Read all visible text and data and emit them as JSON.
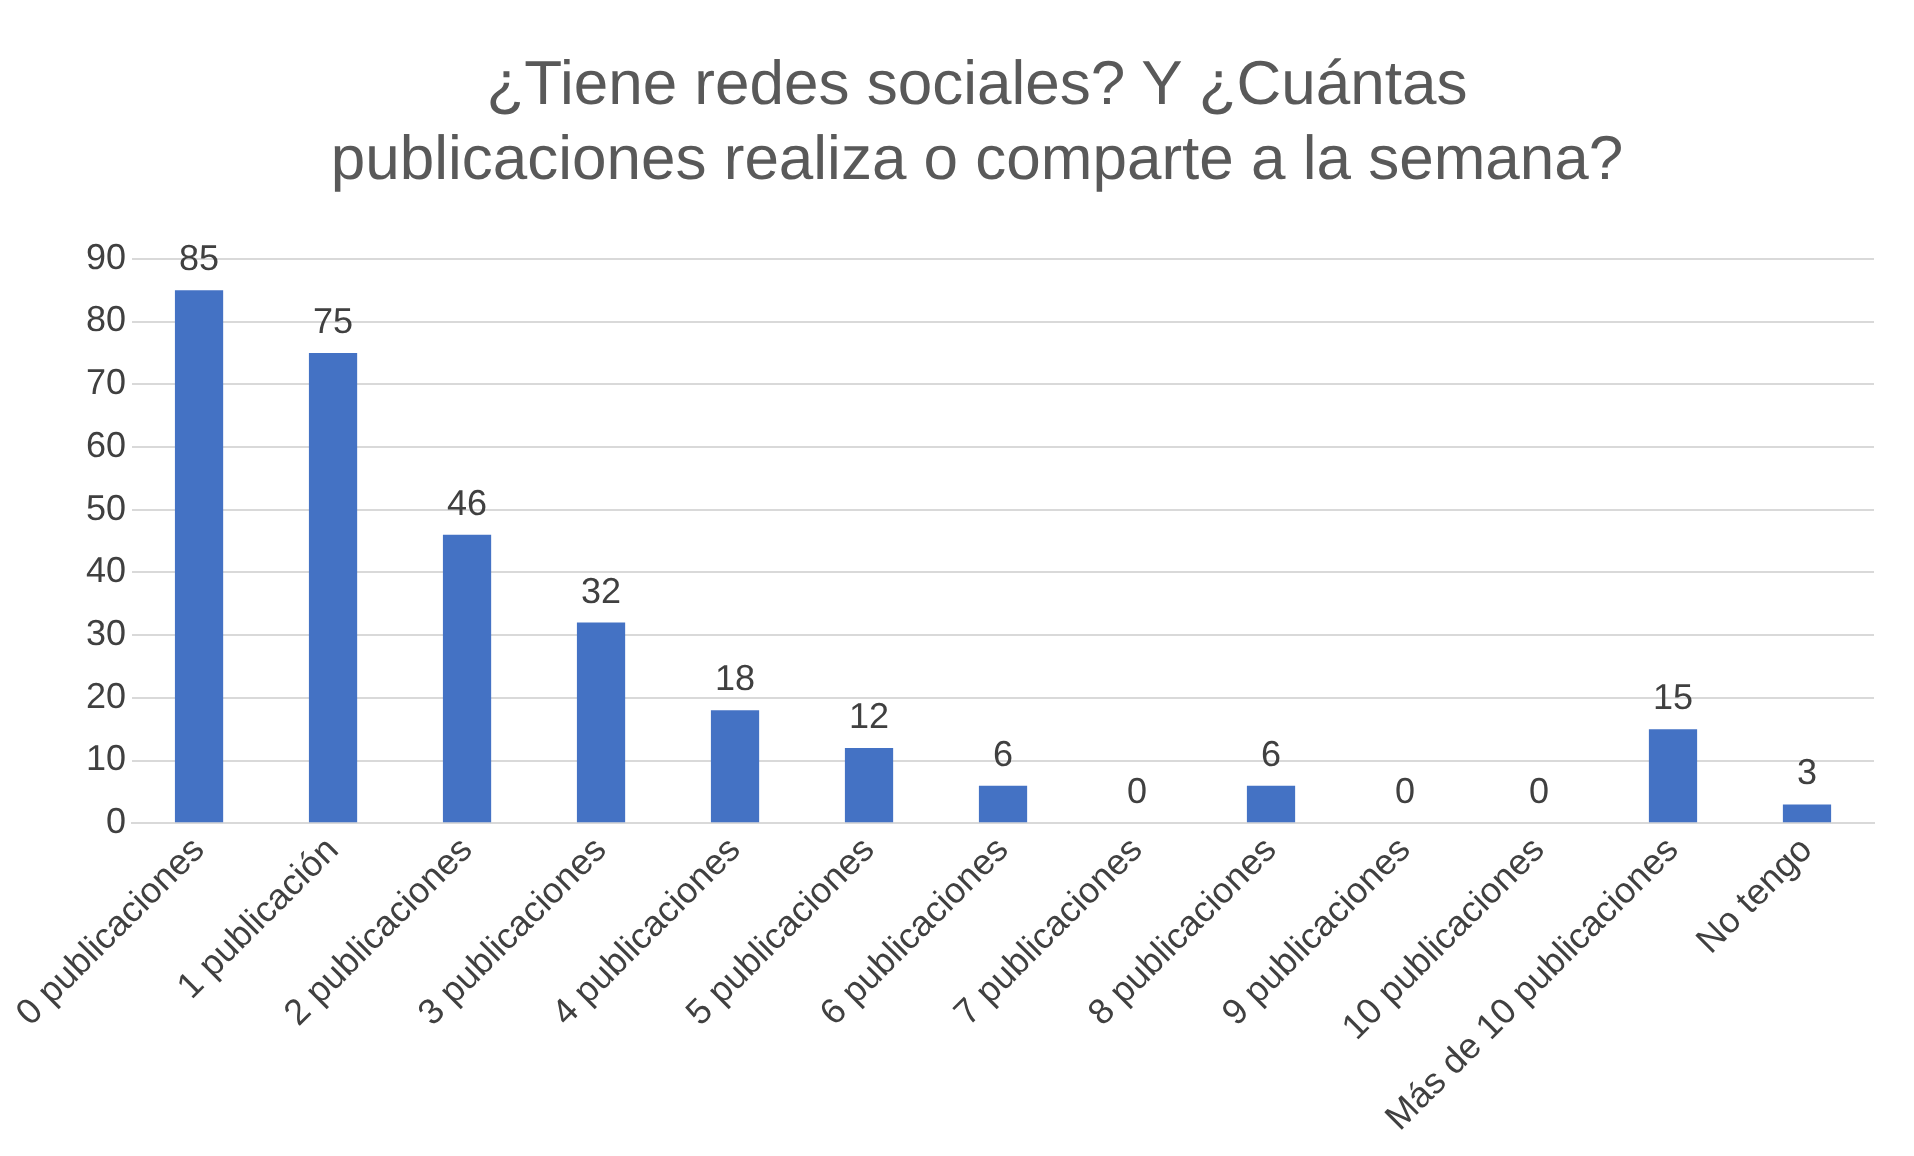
{
  "chart_data": {
    "type": "bar",
    "title": "¿Tiene redes sociales? Y ¿Cuántas publicaciones realiza o comparte a la semana?",
    "categories": [
      "0 publicaciones",
      "1 publicación",
      "2 publicaciones",
      "3 publicaciones",
      "4 publicaciones",
      "5 publicaciones",
      "6 publicaciones",
      "7 publicaciones",
      "8 publicaciones",
      "9 publicaciones",
      "10 publicaciones",
      "Más de 10 publicaciones",
      "No tengo"
    ],
    "values": [
      85,
      75,
      46,
      32,
      18,
      12,
      6,
      0,
      6,
      0,
      0,
      15,
      3
    ],
    "color": "#4472c4",
    "ylim": [
      0,
      90
    ],
    "yticks": [
      0,
      10,
      20,
      30,
      40,
      50,
      60,
      70,
      80,
      90
    ],
    "grid": "y",
    "data_labels": true,
    "legend": false
  }
}
